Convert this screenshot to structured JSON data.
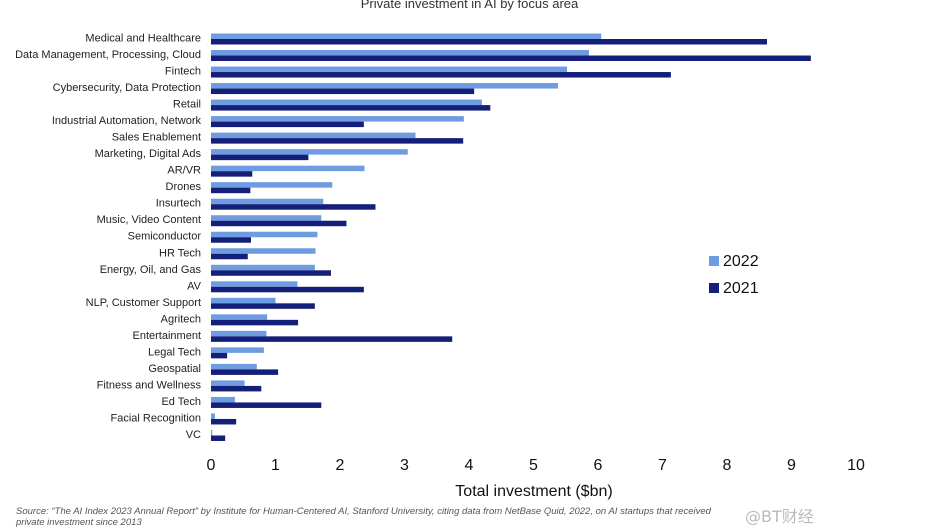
{
  "chart_data": {
    "type": "bar",
    "orientation": "horizontal",
    "title": "Private investment in AI by focus area",
    "xlabel": "Total investment ($bn)",
    "ylabel": "",
    "xlim": [
      0,
      10
    ],
    "xticks": [
      "0",
      "1",
      "2",
      "3",
      "4",
      "5",
      "6",
      "7",
      "8",
      "9",
      "10"
    ],
    "categories": [
      "Medical and Healthcare",
      "Data Management, Processing, Cloud",
      "Fintech",
      "Cybersecurity, Data Protection",
      "Retail",
      "Industrial Automation, Network",
      "Sales Enablement",
      "Marketing, Digital Ads",
      "AR/VR",
      "Drones",
      "Insurtech",
      "Music, Video Content",
      "Semiconductor",
      "HR Tech",
      "Energy, Oil, and Gas",
      "AV",
      "NLP, Customer Support",
      "Agritech",
      "Entertainment",
      "Legal Tech",
      "Geospatial",
      "Fitness and Wellness",
      "Ed Tech",
      "Facial Recognition",
      "VC"
    ],
    "series": [
      {
        "name": "2022",
        "color": "#6f9be0",
        "values": [
          6.05,
          5.86,
          5.52,
          5.38,
          4.2,
          3.92,
          3.17,
          3.05,
          2.38,
          1.88,
          1.74,
          1.71,
          1.65,
          1.62,
          1.61,
          1.34,
          1.0,
          0.87,
          0.86,
          0.82,
          0.71,
          0.52,
          0.37,
          0.06,
          0.02
        ]
      },
      {
        "name": "2021",
        "color": "#141f7a",
        "values": [
          8.62,
          9.3,
          7.13,
          4.08,
          4.33,
          2.37,
          3.91,
          1.51,
          0.64,
          0.61,
          2.55,
          2.1,
          0.62,
          0.57,
          1.86,
          2.37,
          1.61,
          1.35,
          3.74,
          0.25,
          1.04,
          0.78,
          1.71,
          0.39,
          0.22
        ]
      }
    ],
    "legend": {
      "position": "right",
      "entries": [
        "2022",
        "2021"
      ]
    },
    "grid": false
  },
  "source_note": "Source: “The AI Index 2023 Annual Report” by Institute for Human-Centered AI, Stanford University, citing data from NetBase Quid, 2022, on AI startups that received private investment since 2013",
  "watermark": "@BT财经"
}
